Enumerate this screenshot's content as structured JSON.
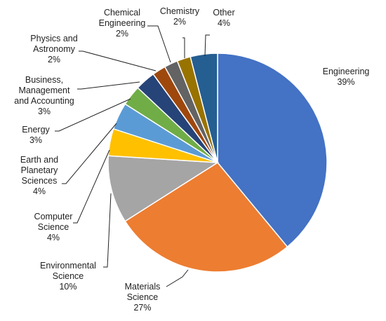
{
  "chart_data": {
    "type": "pie",
    "slices": [
      {
        "label": [
          "Engineering"
        ],
        "pct_label": "39%",
        "value": 39,
        "color": "#4472C4"
      },
      {
        "label": [
          "Materials",
          "Science"
        ],
        "pct_label": "27%",
        "value": 27,
        "color": "#ED7D31"
      },
      {
        "label": [
          "Environmental",
          "Science"
        ],
        "pct_label": "10%",
        "value": 10,
        "color": "#A5A5A5"
      },
      {
        "label": [
          "Computer",
          "Science"
        ],
        "pct_label": "4%",
        "value": 4,
        "color": "#FFC000"
      },
      {
        "label": [
          "Earth and",
          "Planetary",
          "Sciences"
        ],
        "pct_label": "4%",
        "value": 4,
        "color": "#5B9BD5"
      },
      {
        "label": [
          "Energy"
        ],
        "pct_label": "3%",
        "value": 3,
        "color": "#70AD47"
      },
      {
        "label": [
          "Business,",
          "Management",
          "and Accounting"
        ],
        "pct_label": "3%",
        "value": 3,
        "color": "#264478"
      },
      {
        "label": [
          "Physics and",
          "Astronomy"
        ],
        "pct_label": "2%",
        "value": 2,
        "color": "#9E480E"
      },
      {
        "label": [
          "Chemical",
          "Engineering"
        ],
        "pct_label": "2%",
        "value": 2,
        "color": "#636363"
      },
      {
        "label": [
          "Chemistry"
        ],
        "pct_label": "2%",
        "value": 2,
        "color": "#997300"
      },
      {
        "label": [
          "Other"
        ],
        "pct_label": "4%",
        "value": 4,
        "color": "#255E91"
      }
    ]
  }
}
